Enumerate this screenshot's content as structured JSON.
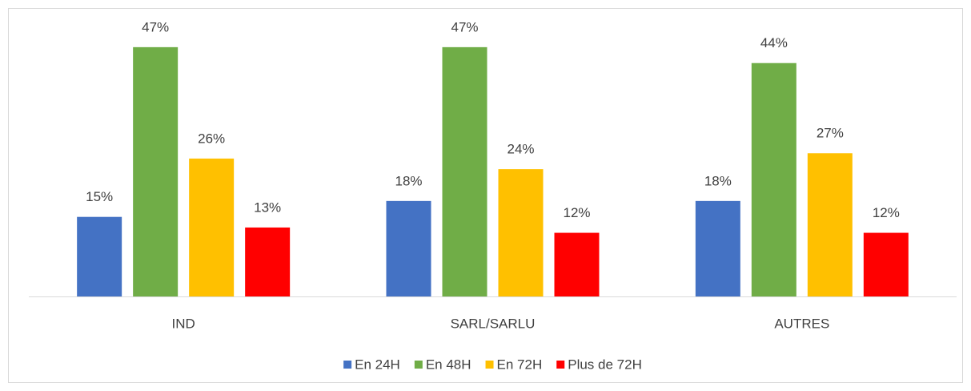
{
  "chart_data": {
    "type": "bar",
    "categories": [
      "IND",
      "SARL/SARLU",
      "AUTRES"
    ],
    "series": [
      {
        "name": "En 24H",
        "color": "#4472c4",
        "values": [
          15,
          18,
          18
        ],
        "value_labels": [
          "15%",
          "18%",
          "18%"
        ]
      },
      {
        "name": "En 48H",
        "color": "#70ad47",
        "values": [
          47,
          47,
          44
        ],
        "value_labels": [
          "47%",
          "47%",
          "44%"
        ]
      },
      {
        "name": "En 72H",
        "color": "#ffc000",
        "values": [
          26,
          24,
          27
        ],
        "value_labels": [
          "26%",
          "24%",
          "27%"
        ]
      },
      {
        "name": "Plus de 72H",
        "color": "#ff0000",
        "values": [
          13,
          12,
          12
        ],
        "value_labels": [
          "13%",
          "12%",
          "12%"
        ]
      }
    ],
    "ylim": [
      0,
      50
    ],
    "legend": "bottom"
  }
}
